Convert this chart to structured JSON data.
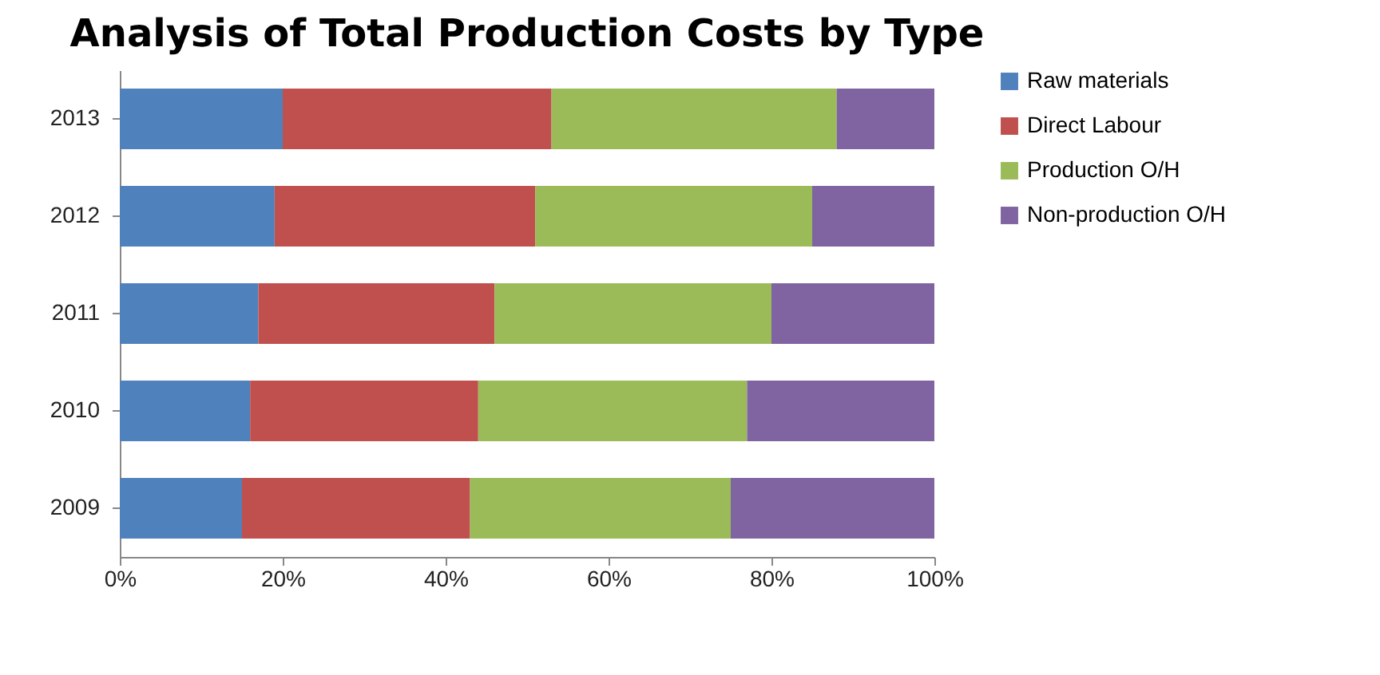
{
  "chart_data": {
    "type": "bar",
    "title": "Analysis of Total Production Costs by Type",
    "orientation": "horizontal",
    "stacked": true,
    "legend": "right",
    "grid": false,
    "categories": [
      "2013",
      "2012",
      "2011",
      "2010",
      "2009"
    ],
    "xlim": [
      0,
      100
    ],
    "xticks": [
      {
        "value": 0,
        "label": "0%"
      },
      {
        "value": 20,
        "label": "20%"
      },
      {
        "value": 40,
        "label": "40%"
      },
      {
        "value": 60,
        "label": "60%"
      },
      {
        "value": 80,
        "label": "80%"
      },
      {
        "value": 100,
        "label": "100%"
      }
    ],
    "series": [
      {
        "name": "Raw materials",
        "color": "#4f81bd",
        "values": [
          20,
          19,
          17,
          16,
          15
        ]
      },
      {
        "name": "Direct Labour",
        "color": "#c0504d",
        "values": [
          33,
          32,
          29,
          28,
          28
        ]
      },
      {
        "name": "Production O/H",
        "color": "#9bbb59",
        "values": [
          35,
          34,
          34,
          33,
          32
        ]
      },
      {
        "name": "Non-production O/H",
        "color": "#8064a2",
        "values": [
          12,
          15,
          20,
          23,
          25
        ]
      }
    ]
  }
}
